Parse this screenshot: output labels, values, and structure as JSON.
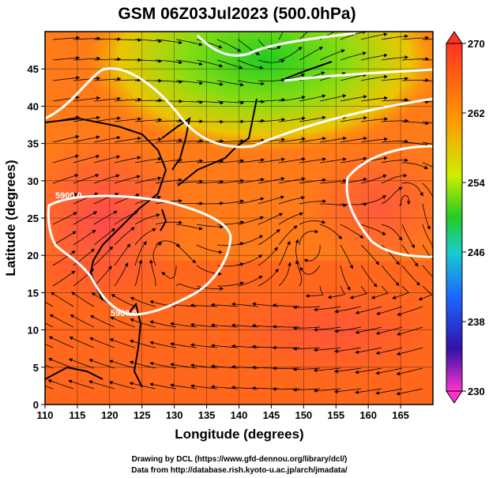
{
  "title": "GSM 06Z03Jul2023 (500.0hPa)",
  "xlabel": "Longitude (degrees)",
  "ylabel": "Latitude  (degrees)",
  "credits": [
    "Drawing by DCL (https://www.gfd-dennou.org/library/dcl/)",
    "Data from http://database.rish.kyoto-u.ac.jp/arch/jmadata/"
  ],
  "chart_data": {
    "type": "heatmap",
    "variable": "temperature with wind streamlines and geopotential height contours",
    "x_ticks": [
      110,
      115,
      120,
      125,
      130,
      135,
      140,
      145,
      150,
      155,
      160,
      165
    ],
    "y_ticks": [
      0,
      5,
      10,
      15,
      20,
      25,
      30,
      35,
      40,
      45
    ],
    "xlim": [
      110,
      170
    ],
    "ylim": [
      0,
      50
    ],
    "colorbar": {
      "ticks": [
        230,
        238,
        246,
        254,
        262,
        270
      ],
      "range": [
        230,
        270
      ],
      "colors": [
        "#ff33cc",
        "#1a1acc",
        "#1aa0ff",
        "#22cc22",
        "#ccee00",
        "#ff9900",
        "#ff3322"
      ]
    },
    "contour_labels": [
      {
        "text": "5900.0",
        "lon": 115,
        "lat": 30
      },
      {
        "text": "5900.0",
        "lon": 124,
        "lat": 14
      }
    ],
    "features": [
      {
        "name": "cold-low",
        "lon": 145,
        "lat": 48
      },
      {
        "name": "vortex",
        "lon": 128,
        "lat": 21
      },
      {
        "name": "vortex",
        "lon": 151,
        "lat": 22.5
      },
      {
        "name": "vortex",
        "lon": 166,
        "lat": 29
      }
    ]
  }
}
